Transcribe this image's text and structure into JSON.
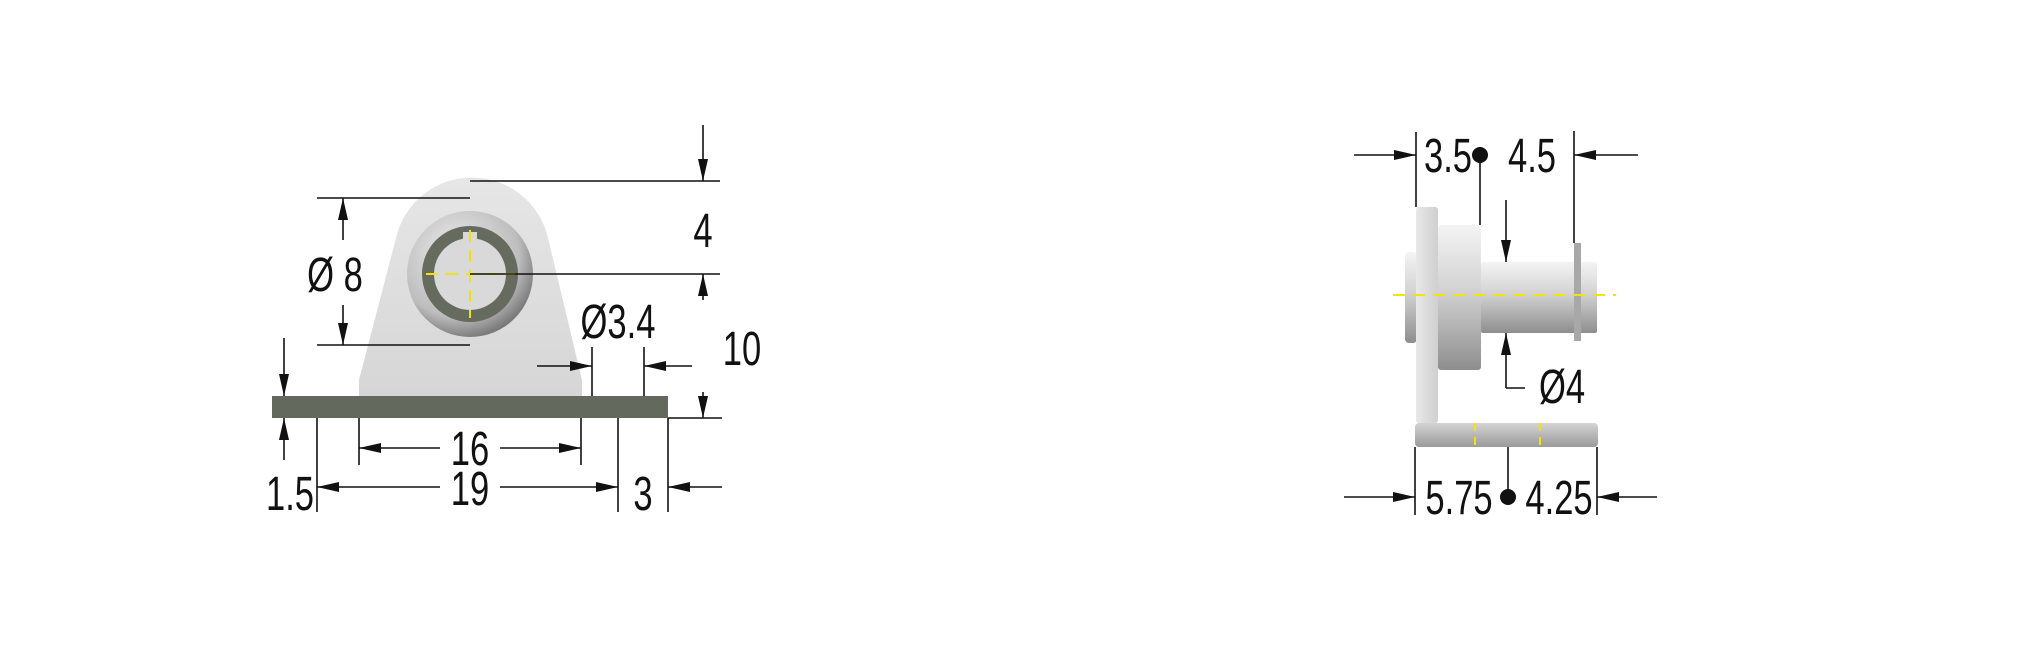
{
  "front_view": {
    "dimensions": {
      "top_offset": "4",
      "hole_height": "10",
      "boss_diameter": "Ø 8",
      "hole_diameter": "Ø3.4",
      "plate_thickness": "1.5",
      "hole_spacing": "16",
      "plate_width": "19",
      "edge_offset": "3"
    }
  },
  "side_view": {
    "dimensions": {
      "flange_depth": "3.5",
      "pin_length": "4.5",
      "pin_diameter": "Ø4",
      "base_left": "5.75",
      "base_right": "4.25"
    }
  },
  "colors": {
    "plate": "#636a5d",
    "body": "#dcdcdc",
    "centerline": "#f2e600",
    "dimension": "#111111"
  }
}
